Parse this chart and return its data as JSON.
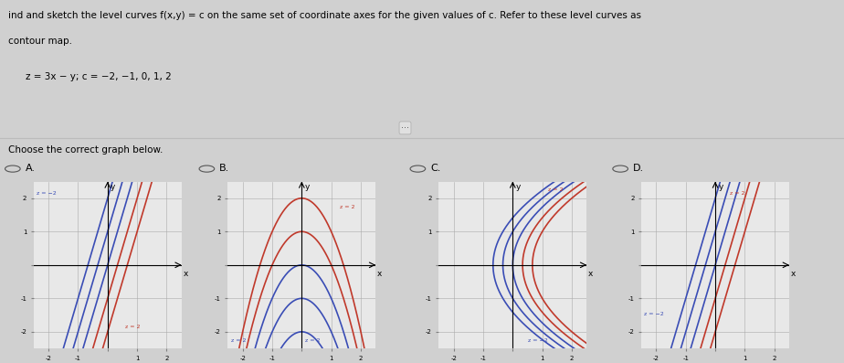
{
  "title_text1": "ind and sketch the level curves f(x,y) = c on the same set of coordinate axes for the given values of c. Refer to these level curves as",
  "title_text2": "contour map.",
  "equation": "z = 3x − y; c = −2, −1, 0, 1, 2",
  "choose_text": "Choose the correct graph below.",
  "c_values": [
    -2,
    -1,
    0,
    1,
    2
  ],
  "xlim": [
    -2.5,
    2.5
  ],
  "ylim": [
    -2.5,
    2.5
  ],
  "xticks": [
    -2,
    -1,
    0,
    1,
    2
  ],
  "yticks": [
    -2,
    -1,
    0,
    1,
    2
  ],
  "axis_labels": {
    "x": "x",
    "y": "y"
  },
  "color_pos": "#c0392b",
  "color_neg": "#3a4db5",
  "color_zero": "#3a4db5",
  "grid_color": "#aaaaaa",
  "grid_linewidth": 0.4,
  "bg_color": "#d0d0d0",
  "panel_bg": "#e8e8e8",
  "label_A": "A.",
  "label_B": "B.",
  "label_C": "C.",
  "label_D": "D.",
  "radio_color": "#555555"
}
